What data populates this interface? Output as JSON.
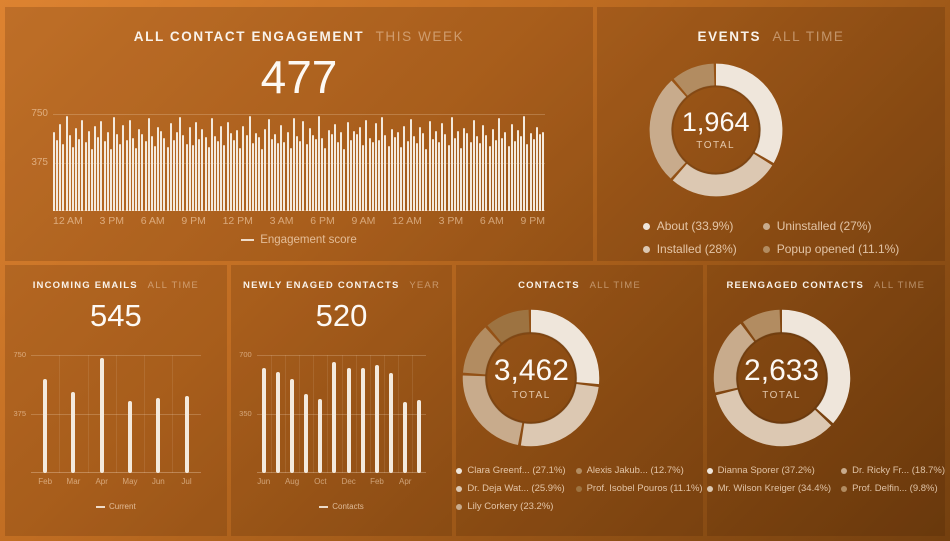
{
  "theme": {
    "background_gradient": [
      "#dd8331",
      "#74400f"
    ],
    "panel_overlay": "rgba(56,24,0,0.18)",
    "bar_color": "#f4eadd",
    "donut_palette": [
      "#efe6db",
      "#dcc8b2",
      "#c8ab8c",
      "#b28c61",
      "#9d7341"
    ]
  },
  "chart_data": [
    {
      "id": "engagement",
      "type": "bar",
      "title": "ALL CONTACT ENGAGEMENT",
      "subtitle": "THIS WEEK",
      "big_value": "477",
      "ylim": [
        0,
        750
      ],
      "y_ticks": [
        750,
        375
      ],
      "grid": true,
      "x_mode": "spread",
      "x_ticks": [
        "12 AM",
        "3 PM",
        "6 AM",
        "9 PM",
        "12 PM",
        "3 AM",
        "6 PM",
        "9 AM",
        "12 AM",
        "3 PM",
        "6 AM",
        "9 PM"
      ],
      "legend": "Engagement score",
      "values": [
        612,
        548,
        671,
        520,
        736,
        589,
        493,
        640,
        557,
        702,
        531,
        615,
        483,
        658,
        572,
        699,
        541,
        610,
        476,
        725,
        594,
        518,
        662,
        549,
        707,
        563,
        488,
        631,
        596,
        542,
        718,
        577,
        505,
        653,
        621,
        568,
        497,
        684,
        552,
        613,
        729,
        586,
        521,
        647,
        509,
        692,
        560,
        634,
        575,
        498,
        716,
        583,
        539,
        661,
        514,
        689,
        602,
        547,
        623,
        488,
        655,
        591,
        733,
        528,
        604,
        569,
        481,
        637,
        712,
        556,
        598,
        525,
        668,
        537,
        609,
        484,
        721,
        578,
        543,
        695,
        516,
        642,
        587,
        554,
        738,
        562,
        491,
        626,
        599,
        673,
        535,
        608,
        479,
        687,
        551,
        619,
        593,
        646,
        512,
        703,
        566,
        531,
        677,
        549,
        724,
        588,
        502,
        635,
        571,
        608,
        493,
        659,
        544,
        714,
        581,
        527,
        650,
        605,
        478,
        696,
        558,
        622,
        536,
        681,
        595,
        510,
        728,
        564,
        617,
        487,
        643,
        601,
        532,
        706,
        579,
        524,
        665,
        590,
        499,
        634,
        548,
        719,
        567,
        611,
        505,
        676,
        541,
        628,
        583,
        732,
        519,
        603,
        557,
        649,
        596,
        612
      ]
    },
    {
      "id": "events",
      "type": "donut",
      "title": "EVENTS",
      "subtitle": "ALL TIME",
      "center_value": "1,964",
      "center_label": "TOTAL",
      "legend_rows": 2,
      "items": [
        {
          "label": "About (33.9%)",
          "pct": 33.9
        },
        {
          "label": "Installed (28%)",
          "pct": 28
        },
        {
          "label": "Uninstalled (27%)",
          "pct": 27
        },
        {
          "label": "Popup opened (11.1%)",
          "pct": 11.1
        }
      ]
    },
    {
      "id": "incoming_emails",
      "type": "bar",
      "title": "INCOMING EMAILS",
      "subtitle": "ALL TIME",
      "big_value": "545",
      "ylim": [
        0,
        750
      ],
      "y_ticks": [
        750,
        375
      ],
      "grid": true,
      "x_mode": "slotted",
      "x_ticks": [
        "Feb",
        "Mar",
        "Apr",
        "May",
        "Jun",
        "Jul"
      ],
      "legend": "Current",
      "values": [
        600,
        515,
        733,
        460,
        474,
        490
      ]
    },
    {
      "id": "newly_engaged",
      "type": "bar",
      "title": "NEWLY ENAGED CONTACTS",
      "subtitle": "YEAR",
      "big_value": "520",
      "ylim": [
        0,
        700
      ],
      "y_ticks": [
        700,
        350
      ],
      "grid": true,
      "x_mode": "slotted",
      "x_ticks": [
        "Jun",
        "",
        "Aug",
        "",
        "Oct",
        "",
        "Dec",
        "",
        "Feb",
        "",
        "Apr",
        ""
      ],
      "legend": "Contacts",
      "values": [
        625,
        600,
        555,
        466,
        437,
        657,
        623,
        625,
        641,
        594,
        423,
        431
      ]
    },
    {
      "id": "contacts",
      "type": "donut",
      "title": "CONTACTS",
      "subtitle": "ALL TIME",
      "center_value": "3,462",
      "center_label": "TOTAL",
      "legend_rows": 3,
      "items": [
        {
          "label": "Clara Greenf... (27.1%)",
          "pct": 27.1
        },
        {
          "label": "Dr. Deja Wat... (25.9%)",
          "pct": 25.9
        },
        {
          "label": "Lily Corkery (23.2%)",
          "pct": 23.2
        },
        {
          "label": "Alexis Jakub... (12.7%)",
          "pct": 12.7
        },
        {
          "label": "Prof. Isobel Pouros (11.1%)",
          "pct": 11.1
        }
      ]
    },
    {
      "id": "reengaged",
      "type": "donut",
      "title": "REENGAGED CONTACTS",
      "subtitle": "ALL TIME",
      "center_value": "2,633",
      "center_label": "TOTAL",
      "legend_rows": 2,
      "items": [
        {
          "label": "Dianna Sporer (37.2%)",
          "pct": 37.2
        },
        {
          "label": "Mr. Wilson Kreiger (34.4%)",
          "pct": 34.4
        },
        {
          "label": "Dr. Ricky Fr... (18.7%)",
          "pct": 18.7
        },
        {
          "label": "Prof. Delfin... (9.8%)",
          "pct": 9.8
        }
      ]
    }
  ]
}
